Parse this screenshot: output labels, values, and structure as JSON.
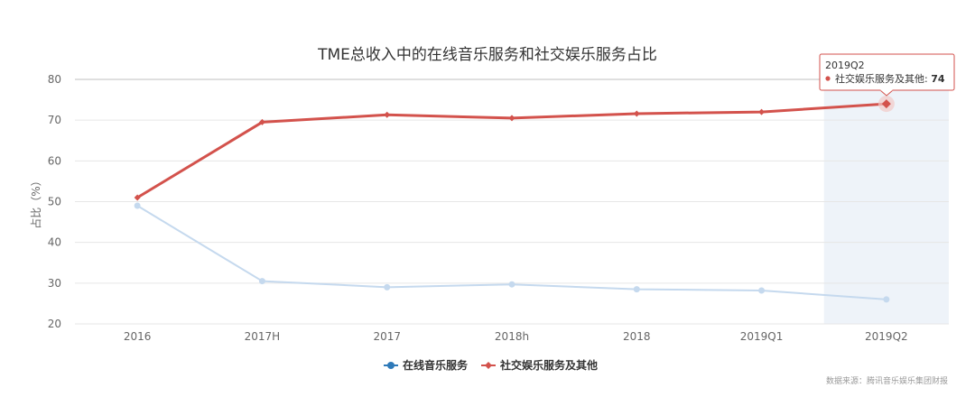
{
  "chart_data": {
    "type": "line",
    "title": "TME总收入中的在线音乐服务和社交娱乐服务占比",
    "ylabel": "占比（%）",
    "xlabel": "",
    "categories": [
      "2016",
      "2017H",
      "2017",
      "2018h",
      "2018",
      "2019Q1",
      "2019Q2"
    ],
    "ylim": [
      20,
      80
    ],
    "yticks": [
      20,
      30,
      40,
      50,
      60,
      70,
      80
    ],
    "grid": true,
    "legend_position": "bottom-center",
    "series": [
      {
        "name": "在线音乐服务",
        "color": "#c5d9ee",
        "legend_color": "#2f7ab9",
        "marker": "circle",
        "values": [
          49,
          30.5,
          29,
          29.7,
          28.5,
          28.2,
          26
        ]
      },
      {
        "name": "社交娱乐服务及其他",
        "color": "#d3524c",
        "legend_color": "#d3524c",
        "marker": "diamond",
        "values": [
          51,
          69.5,
          71.3,
          70.5,
          71.6,
          72,
          74
        ]
      }
    ],
    "highlight": {
      "category_index": 6,
      "color": "#eef3f9"
    },
    "tooltip": {
      "header": "2019Q2",
      "series_label": "社交娱乐服务及其他: ",
      "value": "74"
    },
    "source": "数据来源：腾讯音乐娱乐集团财报"
  }
}
